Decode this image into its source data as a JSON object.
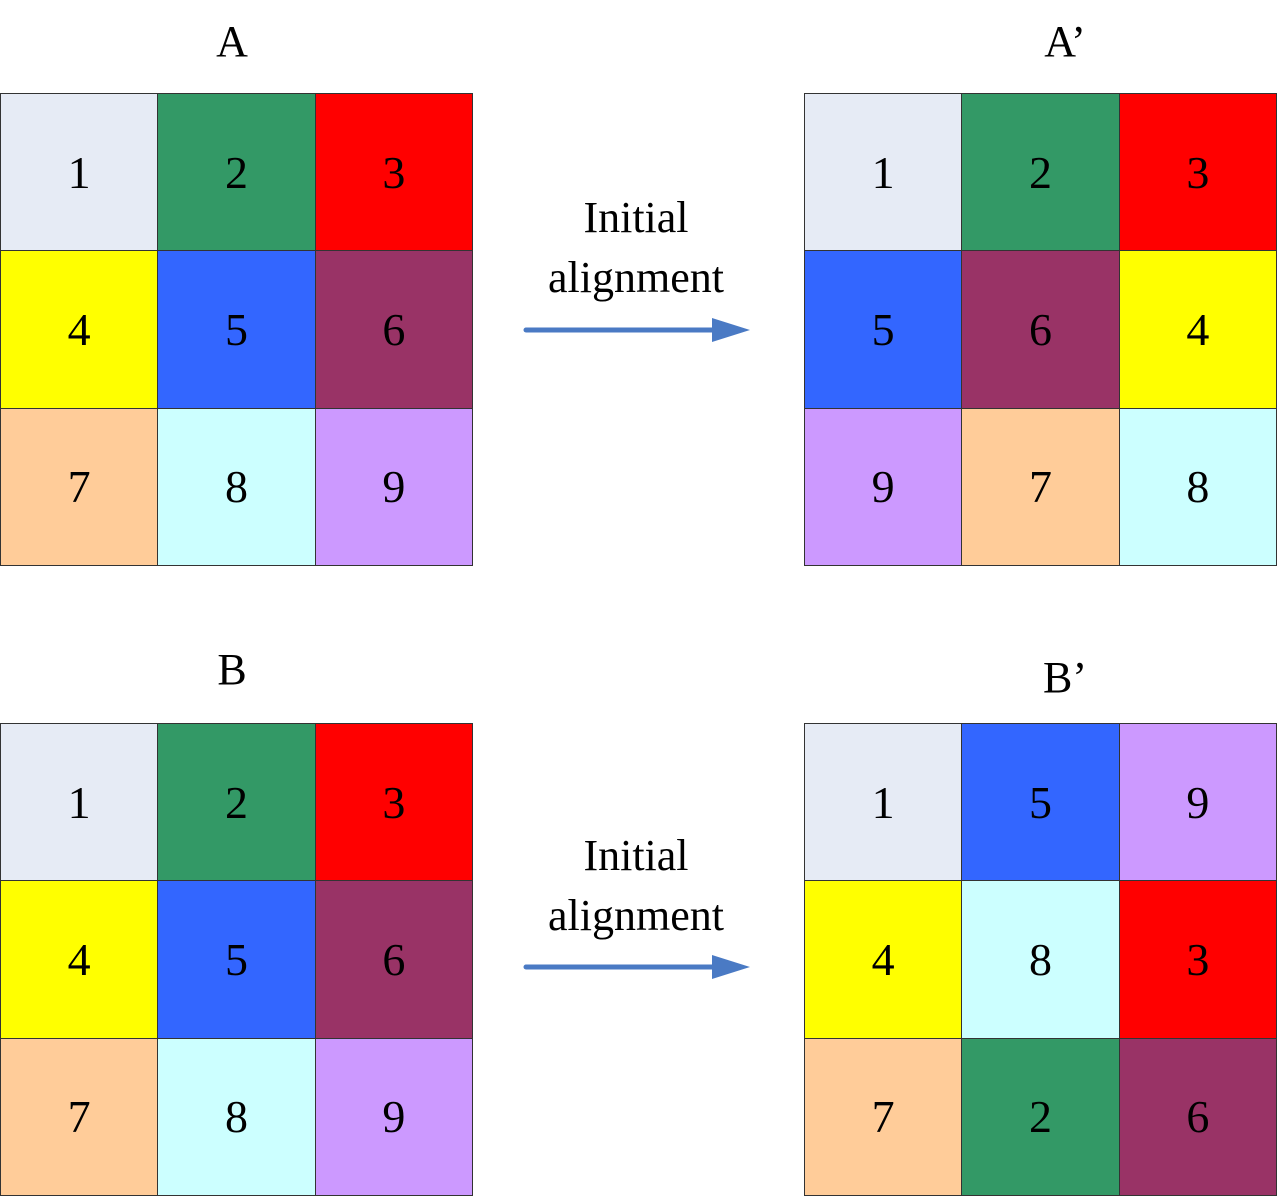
{
  "colors": {
    "1": "#e6ebf5",
    "2": "#339966",
    "3": "#ff0000",
    "4": "#ffff00",
    "5": "#3366ff",
    "6": "#993366",
    "7": "#ffcc99",
    "8": "#ccffff",
    "9": "#cc99ff",
    "arrow": "#4a7ac4"
  },
  "panels": {
    "A": {
      "title": "A",
      "cells": [
        "1",
        "2",
        "3",
        "4",
        "5",
        "6",
        "7",
        "8",
        "9"
      ]
    },
    "A_prime": {
      "title": "A’",
      "cells": [
        "1",
        "2",
        "3",
        "5",
        "6",
        "4",
        "9",
        "7",
        "8"
      ]
    },
    "B": {
      "title": "B",
      "cells": [
        "1",
        "2",
        "3",
        "4",
        "5",
        "6",
        "7",
        "8",
        "9"
      ]
    },
    "B_prime": {
      "title": "B’",
      "cells": [
        "1",
        "5",
        "9",
        "4",
        "8",
        "3",
        "7",
        "2",
        "6"
      ]
    }
  },
  "arrows": {
    "top": {
      "line1": "Initial",
      "line2": "alignment"
    },
    "bottom": {
      "line1": "Initial",
      "line2": "alignment"
    }
  }
}
